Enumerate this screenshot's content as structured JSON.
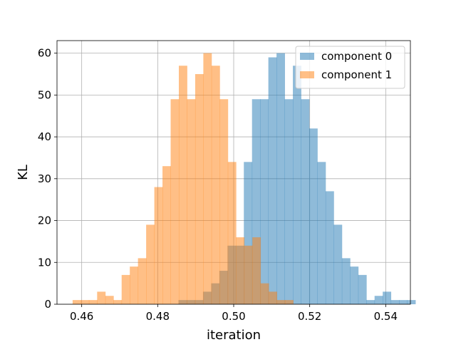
{
  "chart_data": {
    "type": "histogram",
    "title": "",
    "xlabel": "iteration",
    "ylabel": "KL",
    "xlim": [
      0.4535,
      0.5465
    ],
    "ylim": [
      0,
      63
    ],
    "xticks": [
      0.46,
      0.48,
      0.5,
      0.52,
      0.54
    ],
    "xtick_labels": [
      "0.46",
      "0.48",
      "0.50",
      "0.52",
      "0.54"
    ],
    "yticks": [
      0,
      10,
      20,
      30,
      40,
      50,
      60
    ],
    "ytick_labels": [
      "0",
      "10",
      "20",
      "30",
      "40",
      "50",
      "60"
    ],
    "grid": true,
    "legend_position": "top-right",
    "bin_width": 0.00215,
    "series": [
      {
        "name": "component 0",
        "color": "#1f77b4",
        "alpha": 0.5,
        "bin_start": 0.48547,
        "counts": [
          1,
          1,
          1,
          3,
          5,
          8,
          14,
          14,
          34,
          49,
          49,
          59,
          60,
          49,
          57,
          49,
          42,
          34,
          27,
          19,
          11,
          9,
          7,
          1,
          2,
          3,
          1,
          1,
          1
        ]
      },
      {
        "name": "component 1",
        "color": "#ff7f0e",
        "alpha": 0.5,
        "bin_start": 0.45761,
        "counts": [
          1,
          1,
          1,
          3,
          2,
          1,
          7,
          9,
          11,
          19,
          28,
          33,
          49,
          57,
          49,
          55,
          60,
          57,
          49,
          34,
          16,
          14,
          16,
          5,
          3,
          1,
          1
        ]
      }
    ]
  }
}
